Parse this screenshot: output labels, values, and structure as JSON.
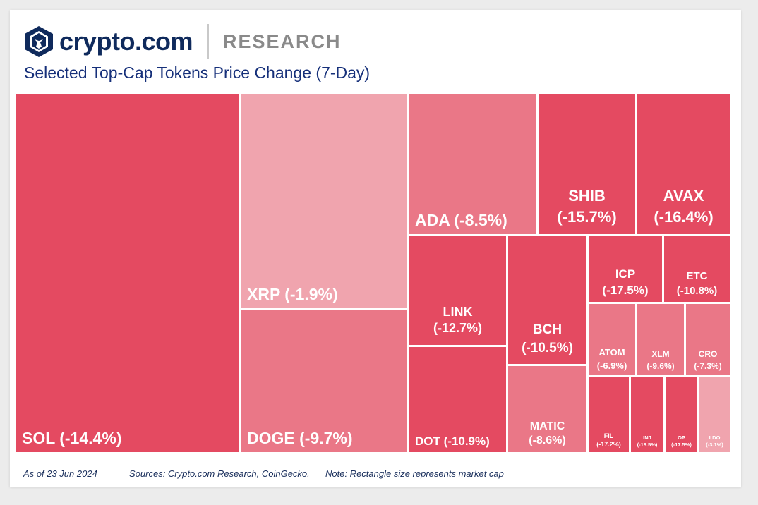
{
  "brand": {
    "name": "crypto.com",
    "section": "RESEARCH"
  },
  "chart_data": {
    "type": "treemap",
    "title": "Selected Top-Cap Tokens Price Change (7-Day)",
    "note": "Note: Rectangle size represents market cap",
    "items": [
      {
        "name": "SOL",
        "change": -14.4,
        "label": "SOL (-14.4%)"
      },
      {
        "name": "XRP",
        "change": -1.9,
        "label": "XRP (-1.9%)"
      },
      {
        "name": "DOGE",
        "change": -9.7,
        "label": "DOGE (-9.7%)"
      },
      {
        "name": "ADA",
        "change": -8.5,
        "label": "ADA (-8.5%)"
      },
      {
        "name": "SHIB",
        "change": -15.7,
        "label": "SHIB (-15.7%)"
      },
      {
        "name": "AVAX",
        "change": -16.4,
        "label": "AVAX (-16.4%)"
      },
      {
        "name": "LINK",
        "change": -12.7,
        "label": "LINK (-12.7%)"
      },
      {
        "name": "DOT",
        "change": -10.9,
        "label": "DOT (-10.9%)"
      },
      {
        "name": "BCH",
        "change": -10.5,
        "label": "BCH (-10.5%)"
      },
      {
        "name": "MATIC",
        "change": -8.6,
        "label": "MATIC (-8.6%)"
      },
      {
        "name": "ICP",
        "change": -17.5,
        "label": "ICP (-17.5%)"
      },
      {
        "name": "ETC",
        "change": -10.8,
        "label": "ETC (-10.8%)"
      },
      {
        "name": "ATOM",
        "change": -6.9,
        "label": "ATOM (-6.9%)"
      },
      {
        "name": "XLM",
        "change": -9.6,
        "label": "XLM (-9.6%)"
      },
      {
        "name": "CRO",
        "change": -7.3,
        "label": "CRO (-7.3%)"
      },
      {
        "name": "FIL",
        "change": -17.2,
        "label": "FIL (-17.2%)"
      },
      {
        "name": "INJ",
        "change": -18.5,
        "label": "INJ (-18.5%)"
      },
      {
        "name": "OP",
        "change": -17.5,
        "label": "OP (-17.5%)"
      },
      {
        "name": "LDO",
        "change": -3.1,
        "label": "LDO (-3.1%)"
      }
    ]
  },
  "footer": {
    "date": "As of 23 Jun 2024",
    "sources": "Sources: Crypto.com Research, CoinGecko.",
    "note": "Note: Rectangle size represents market cap"
  },
  "colors": {
    "dark": "#e44a61",
    "mid": "#ea7787",
    "light": "#f0a4ae",
    "brand_navy": "#0f2a5c"
  }
}
